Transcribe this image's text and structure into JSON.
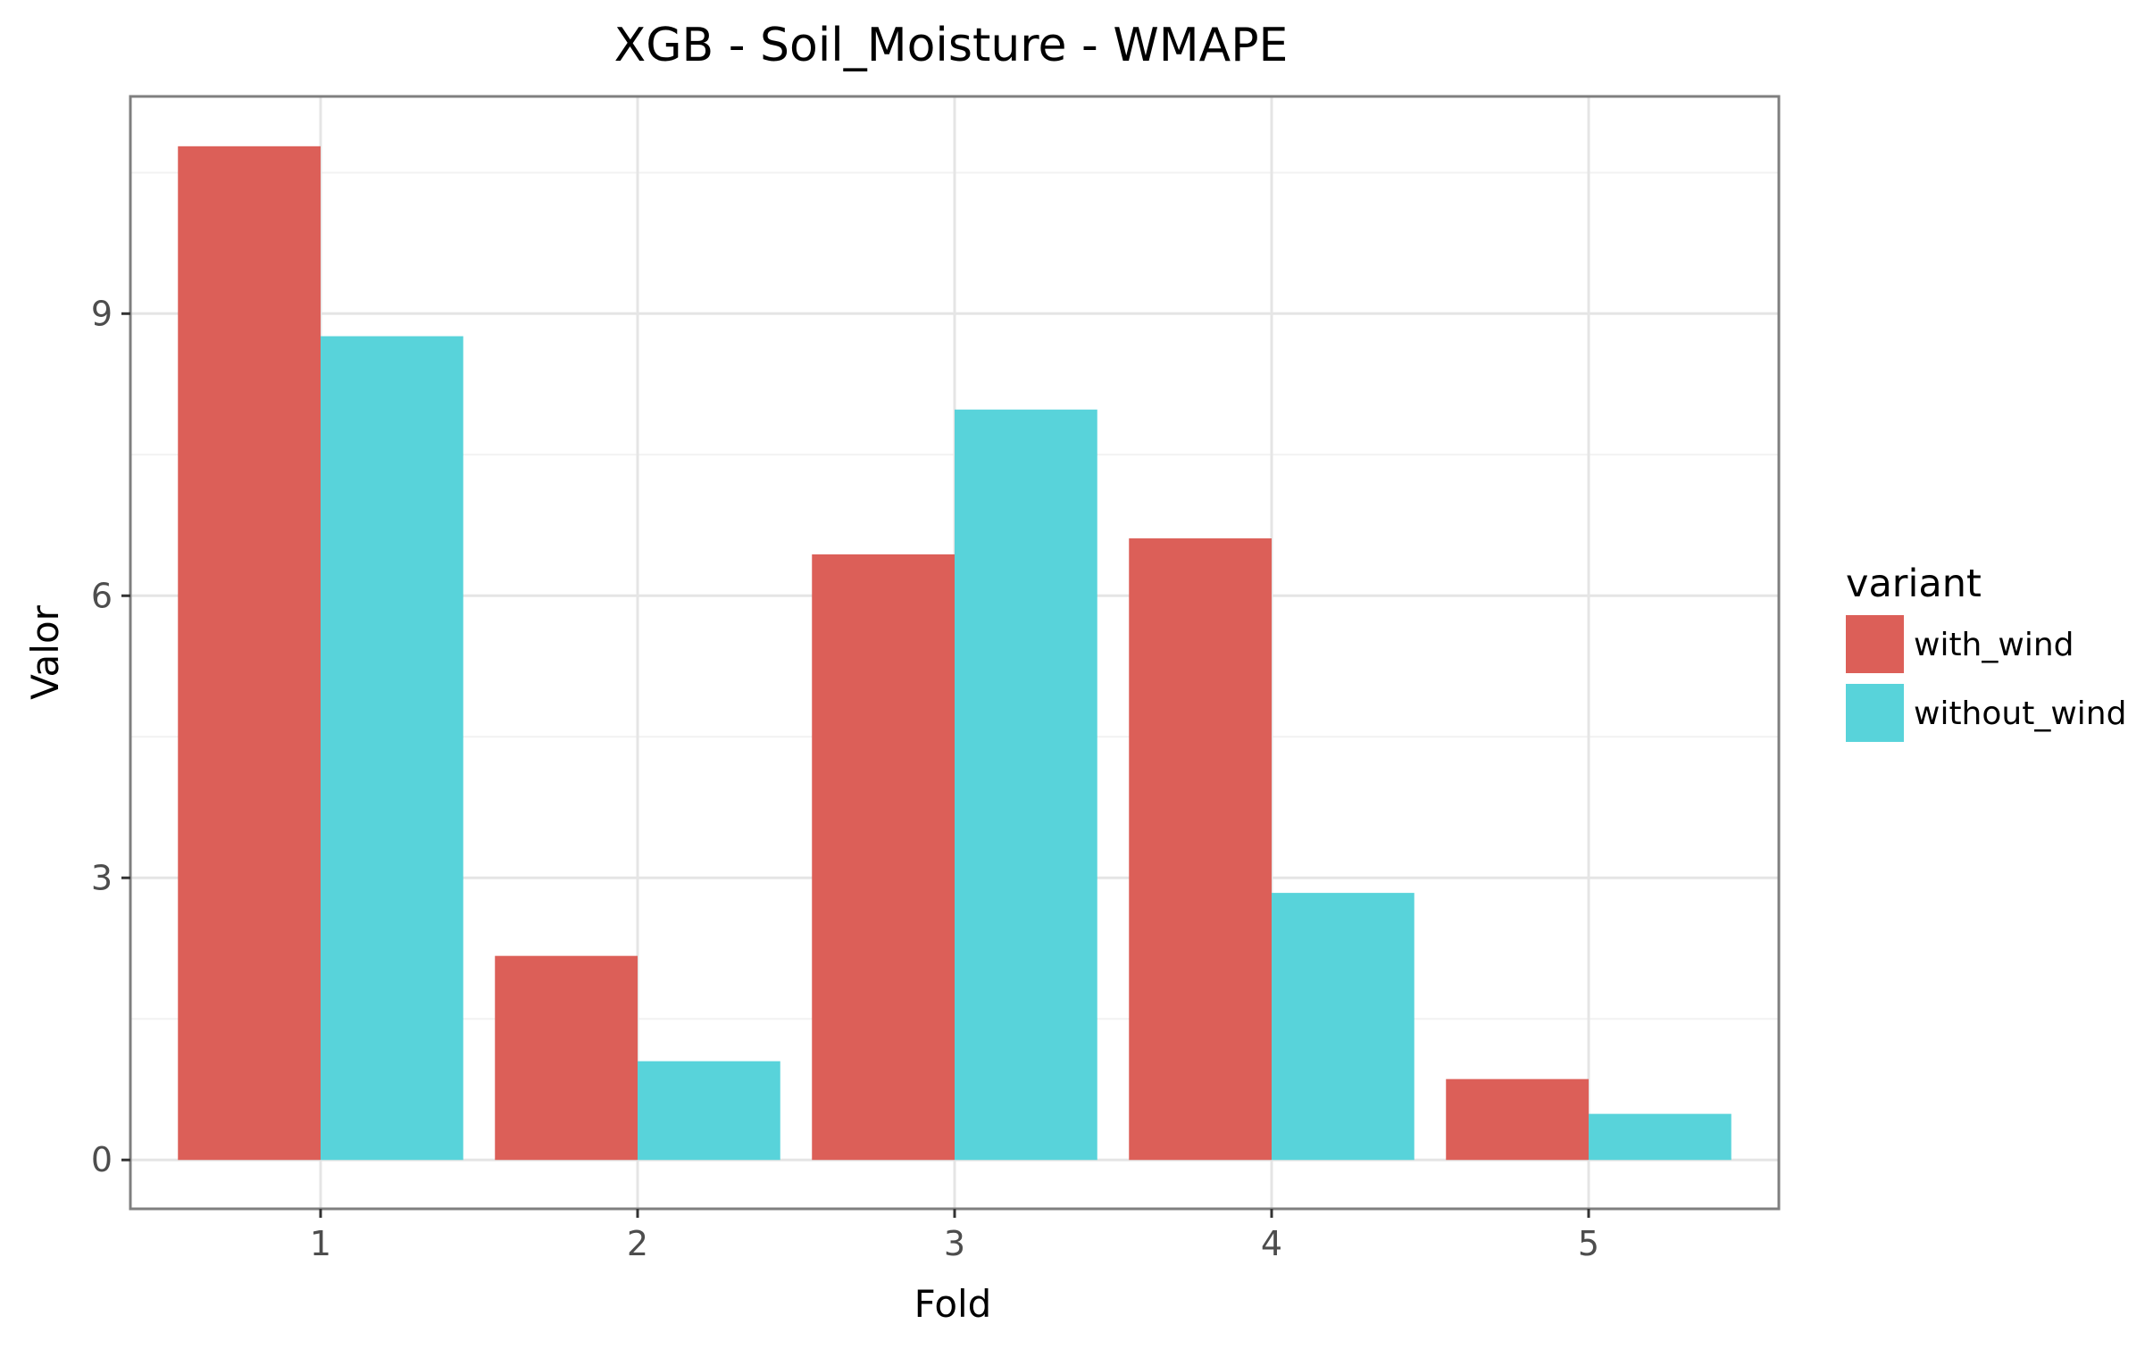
{
  "chart_data": {
    "type": "bar",
    "title": "XGB - Soil_Moisture - WMAPE",
    "xlabel": "Fold",
    "ylabel": "Valor",
    "categories": [
      "1",
      "2",
      "3",
      "4",
      "5"
    ],
    "series": [
      {
        "name": "with_wind",
        "color": "#dc5f58",
        "values": [
          10.78,
          2.17,
          6.44,
          6.61,
          0.86
        ]
      },
      {
        "name": "without_wind",
        "color": "#58d3da",
        "values": [
          8.76,
          1.05,
          7.98,
          2.84,
          0.49
        ]
      }
    ],
    "yticks": [
      0,
      3,
      6,
      9
    ],
    "ytick_labels": [
      "0",
      "3",
      "6",
      "9"
    ],
    "ylim": [
      -0.52,
      11.31
    ],
    "grid": true,
    "legend": {
      "title": "variant",
      "position": "right"
    }
  }
}
